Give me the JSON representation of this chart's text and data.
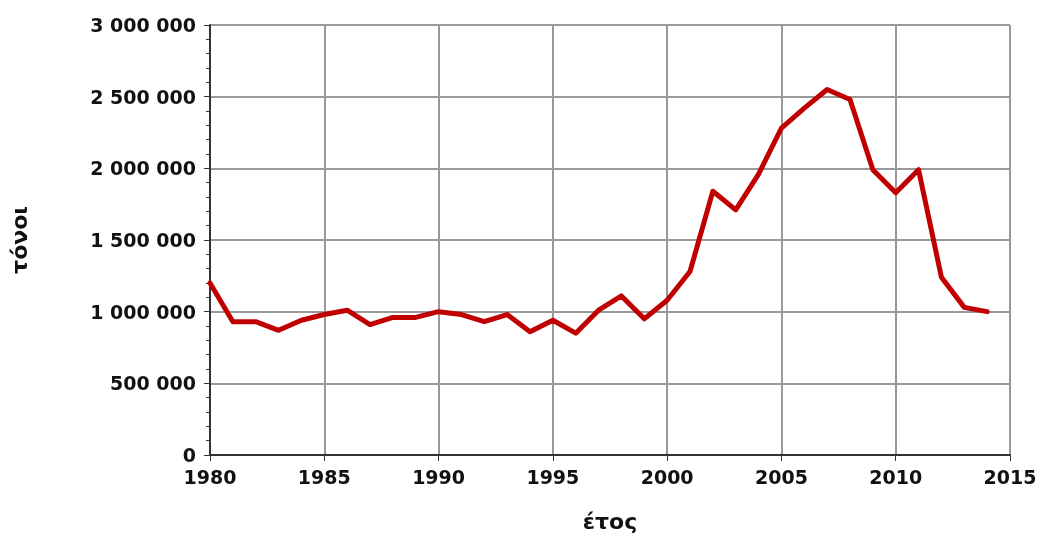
{
  "chart_data": {
    "type": "line",
    "xlabel": "έτος",
    "ylabel": "τόνοι",
    "x": [
      1980,
      1981,
      1982,
      1983,
      1984,
      1985,
      1986,
      1987,
      1988,
      1989,
      1990,
      1991,
      1992,
      1993,
      1994,
      1995,
      1996,
      1997,
      1998,
      1999,
      2000,
      2001,
      2002,
      2003,
      2004,
      2005,
      2006,
      2007,
      2008,
      2009,
      2010,
      2011,
      2012,
      2013,
      2014
    ],
    "series": [
      {
        "color": "#c00000",
        "values": [
          1200000,
          930000,
          930000,
          870000,
          940000,
          980000,
          1010000,
          910000,
          960000,
          960000,
          1000000,
          980000,
          930000,
          980000,
          860000,
          940000,
          850000,
          1010000,
          1110000,
          950000,
          1080000,
          1280000,
          1840000,
          1710000,
          1960000,
          2280000,
          2420000,
          2550000,
          2480000,
          1990000,
          1830000,
          1990000,
          1240000,
          1030000,
          1000000
        ]
      }
    ],
    "xlim": [
      1980,
      2015
    ],
    "xticks": [
      1980,
      1985,
      1990,
      1995,
      2000,
      2005,
      2010,
      2015
    ],
    "ylim": [
      0,
      3000000
    ],
    "yticks": [
      0,
      {
        "value": 500000,
        "label": "500 000"
      },
      {
        "value": 1000000,
        "label": "1 000 000"
      },
      {
        "value": 1500000,
        "label": "1 500 000"
      },
      {
        "value": 2000000,
        "label": "2 000 000"
      },
      {
        "value": 2500000,
        "label": "2 500 000"
      },
      {
        "value": 3000000,
        "label": "3 000 000"
      }
    ],
    "grid": true,
    "marker": "none",
    "line_style": "solid"
  }
}
